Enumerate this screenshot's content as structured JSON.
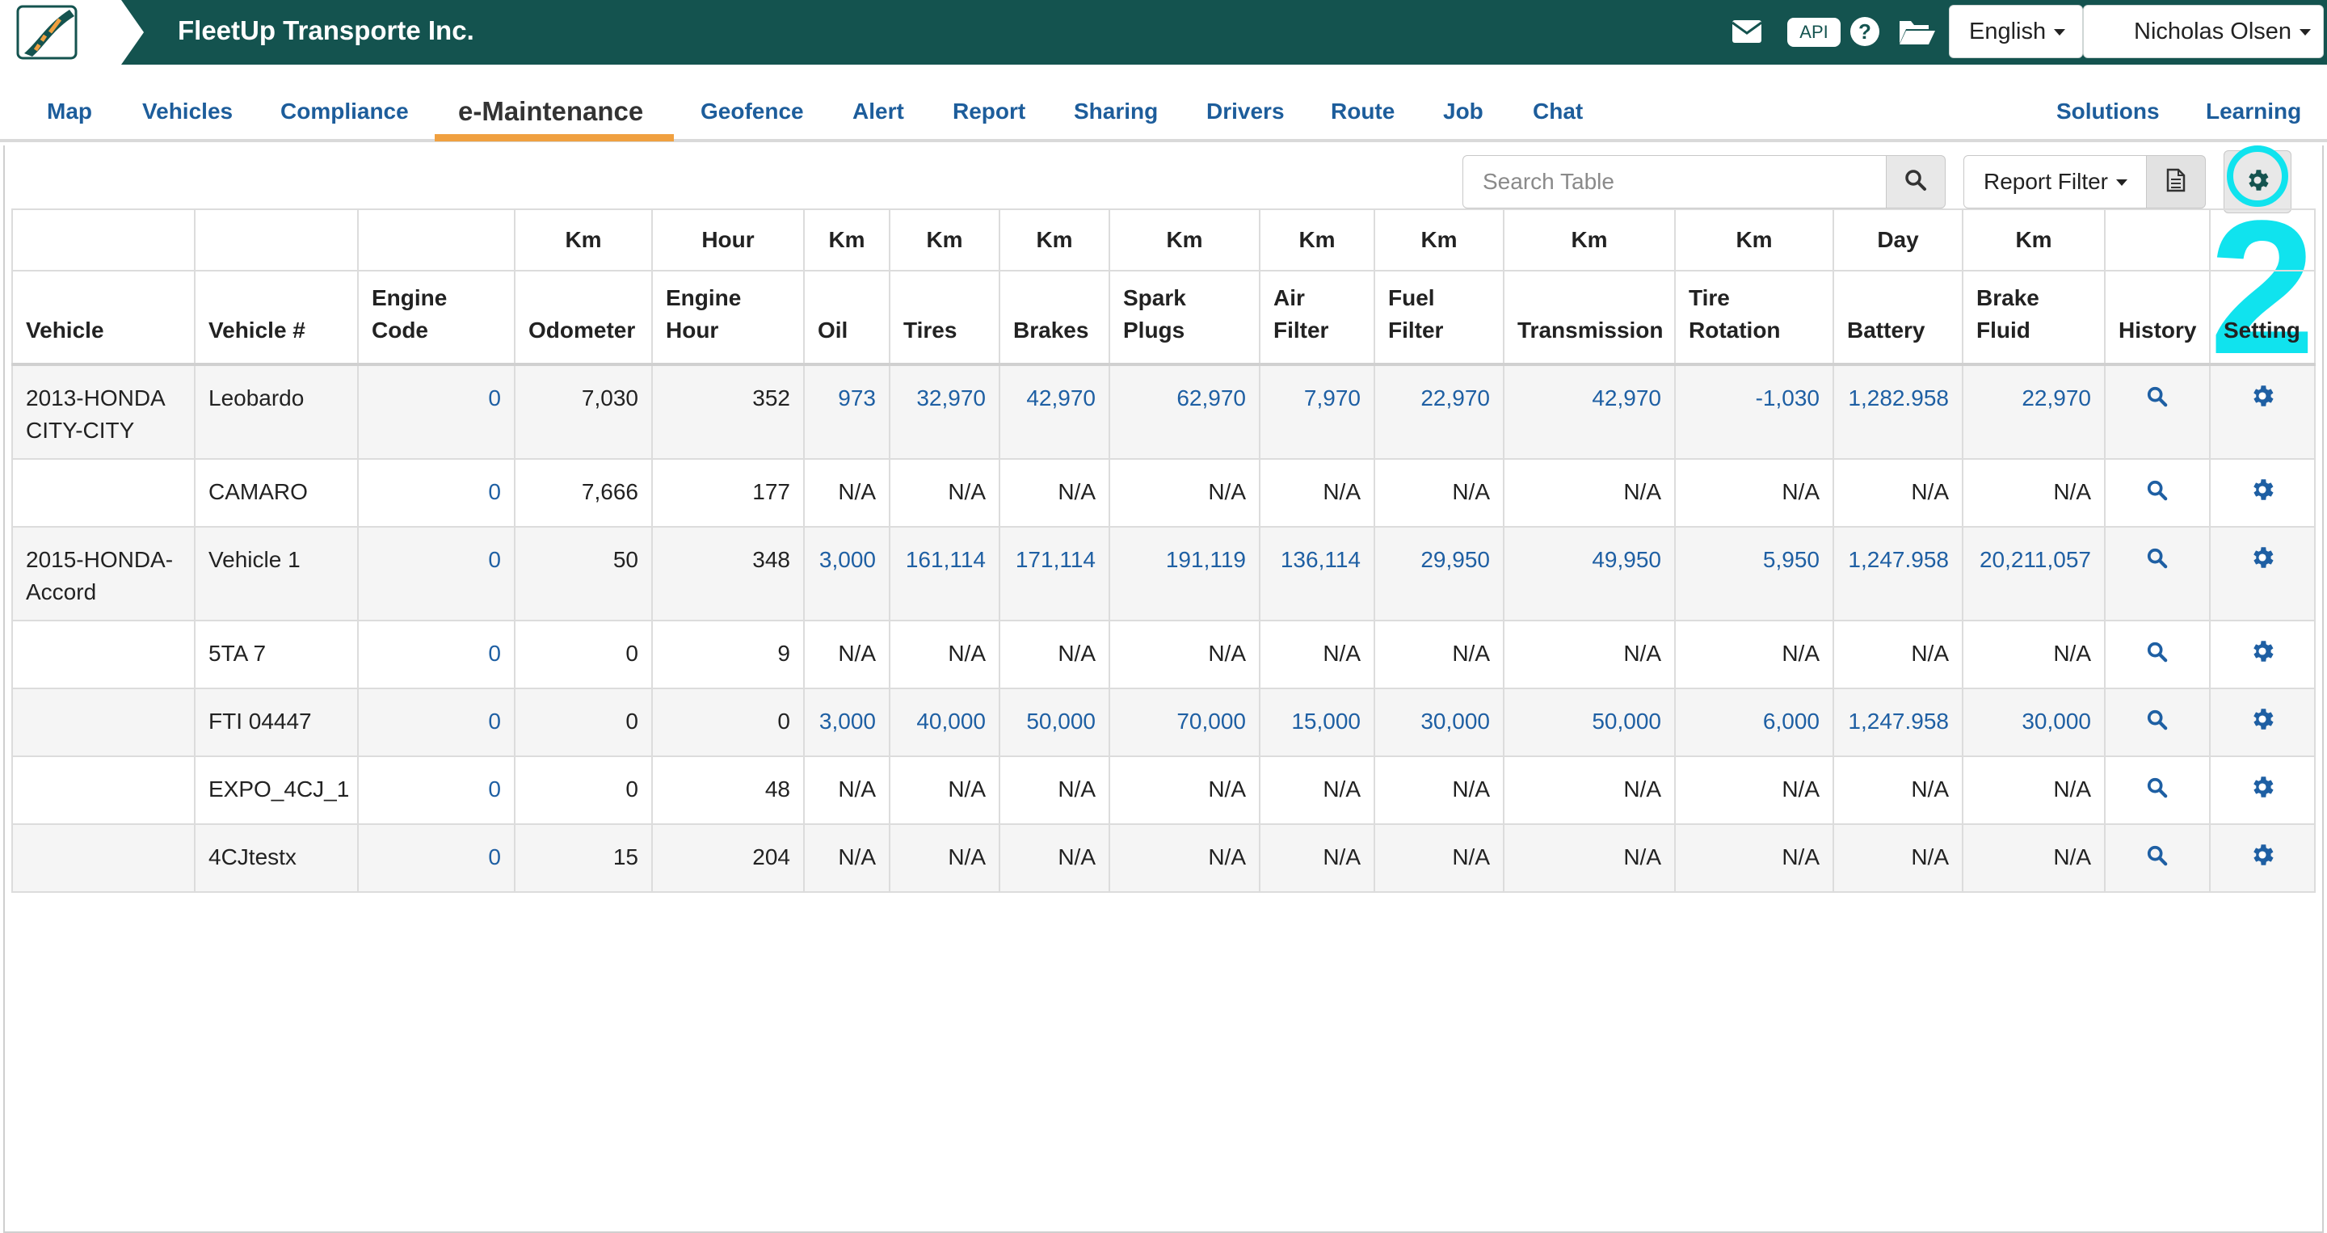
{
  "header": {
    "app_title": "FleetUp Transporte Inc.",
    "api_label": "API",
    "language": "English",
    "user": "Nicholas Olsen",
    "icons": [
      "mail-icon",
      "help-icon",
      "folder-open-icon"
    ]
  },
  "nav": {
    "items": [
      {
        "label": "Map"
      },
      {
        "label": "Vehicles"
      },
      {
        "label": "Compliance"
      },
      {
        "label": "e-Maintenance",
        "active": true
      },
      {
        "label": "Geofence"
      },
      {
        "label": "Alert"
      },
      {
        "label": "Report"
      },
      {
        "label": "Sharing"
      },
      {
        "label": "Drivers"
      },
      {
        "label": "Route"
      },
      {
        "label": "Job"
      },
      {
        "label": "Chat"
      },
      {
        "label": "Solutions"
      },
      {
        "label": "Learning"
      }
    ]
  },
  "toolbar": {
    "search_placeholder": "Search Table",
    "report_filter_label": "Report Filter",
    "annotation_step": "2"
  },
  "table": {
    "units": [
      "",
      "",
      "",
      "Km",
      "Hour",
      "Km",
      "Km",
      "Km",
      "Km",
      "Km",
      "Km",
      "Km",
      "Km",
      "Day",
      "Km",
      "",
      ""
    ],
    "columns": [
      "Vehicle",
      "Vehicle #",
      "Engine Code",
      "Odometer",
      "Engine Hour",
      "Oil",
      "Tires",
      "Brakes",
      "Spark Plugs",
      "Air Filter",
      "Fuel Filter",
      "Transmission",
      "Tire Rotation",
      "Battery",
      "Brake Fluid",
      "History",
      "Setting"
    ],
    "rows": [
      {
        "vehicle": "2013-HONDA CITY-CITY",
        "number": "Leobardo",
        "engine_code": "0",
        "odometer": "7,030",
        "engine_hour": "352",
        "oil": "973",
        "tires": "32,970",
        "brakes": "42,970",
        "spark_plugs": "62,970",
        "air_filter": "7,970",
        "fuel_filter": "22,970",
        "transmission": "42,970",
        "tire_rotation": "-1,030",
        "battery": "1,282.958",
        "brake_fluid": "22,970"
      },
      {
        "vehicle": "",
        "number": "CAMARO",
        "engine_code": "0",
        "odometer": "7,666",
        "engine_hour": "177",
        "oil": "N/A",
        "tires": "N/A",
        "brakes": "N/A",
        "spark_plugs": "N/A",
        "air_filter": "N/A",
        "fuel_filter": "N/A",
        "transmission": "N/A",
        "tire_rotation": "N/A",
        "battery": "N/A",
        "brake_fluid": "N/A"
      },
      {
        "vehicle": "2015-HONDA-Accord",
        "number": "Vehicle 1",
        "engine_code": "0",
        "odometer": "50",
        "engine_hour": "348",
        "oil": "3,000",
        "tires": "161,114",
        "brakes": "171,114",
        "spark_plugs": "191,119",
        "air_filter": "136,114",
        "fuel_filter": "29,950",
        "transmission": "49,950",
        "tire_rotation": "5,950",
        "battery": "1,247.958",
        "brake_fluid": "20,211,057"
      },
      {
        "vehicle": "",
        "number": "5TA 7",
        "engine_code": "0",
        "odometer": "0",
        "engine_hour": "9",
        "oil": "N/A",
        "tires": "N/A",
        "brakes": "N/A",
        "spark_plugs": "N/A",
        "air_filter": "N/A",
        "fuel_filter": "N/A",
        "transmission": "N/A",
        "tire_rotation": "N/A",
        "battery": "N/A",
        "brake_fluid": "N/A"
      },
      {
        "vehicle": "",
        "number": "FTI 04447",
        "engine_code": "0",
        "odometer": "0",
        "engine_hour": "0",
        "oil": "3,000",
        "tires": "40,000",
        "brakes": "50,000",
        "spark_plugs": "70,000",
        "air_filter": "15,000",
        "fuel_filter": "30,000",
        "transmission": "50,000",
        "tire_rotation": "6,000",
        "battery": "1,247.958",
        "brake_fluid": "30,000"
      },
      {
        "vehicle": "",
        "number": "EXPO_4CJ_1",
        "engine_code": "0",
        "odometer": "0",
        "engine_hour": "48",
        "oil": "N/A",
        "tires": "N/A",
        "brakes": "N/A",
        "spark_plugs": "N/A",
        "air_filter": "N/A",
        "fuel_filter": "N/A",
        "transmission": "N/A",
        "tire_rotation": "N/A",
        "battery": "N/A",
        "brake_fluid": "N/A"
      },
      {
        "vehicle": "",
        "number": "4CJtestx",
        "engine_code": "0",
        "odometer": "15",
        "engine_hour": "204",
        "oil": "N/A",
        "tires": "N/A",
        "brakes": "N/A",
        "spark_plugs": "N/A",
        "air_filter": "N/A",
        "fuel_filter": "N/A",
        "transmission": "N/A",
        "tire_rotation": "N/A",
        "battery": "N/A",
        "brake_fluid": "N/A"
      }
    ]
  },
  "colors": {
    "header_bg": "#14534f",
    "nav_link": "#1d5d9b",
    "active_underline": "#f0a040",
    "value_link": "#1e5fa3",
    "annotation": "#10e3ee"
  }
}
